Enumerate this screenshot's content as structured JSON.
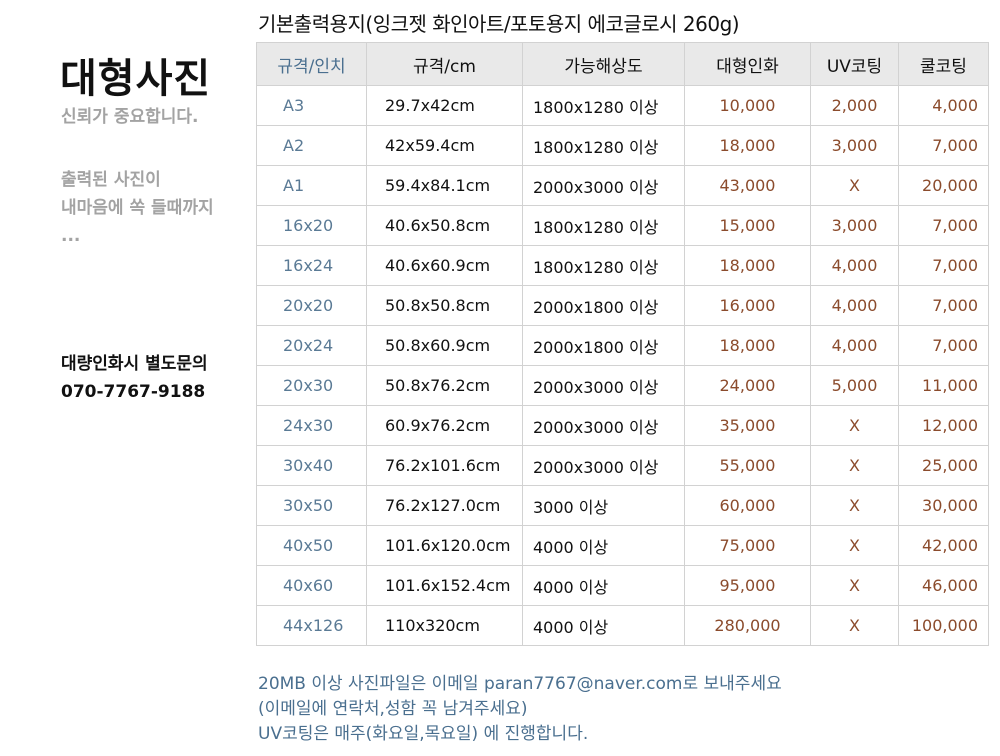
{
  "sidebar": {
    "title": "대형사진",
    "subtitle": "신뢰가 중요합니다.",
    "promo_lines": [
      "출력된 사진이",
      "내마음에 쏙 들때까지",
      "..."
    ],
    "contact_lines": [
      "대량인화시 별도문의",
      "070-7767-9188"
    ]
  },
  "table": {
    "title": "기본출력용지(잉크젯 화인아트/포토용지 에코글로시 260g)",
    "headers": [
      "규격/인치",
      "규격/cm",
      "가능해상도",
      "대형인화",
      "UV코팅",
      "쿨코팅"
    ],
    "rows": [
      [
        "A3",
        "29.7x42cm",
        "1800x1280 이상",
        "10,000",
        "2,000",
        "4,000"
      ],
      [
        "A2",
        "42x59.4cm",
        "1800x1280 이상",
        "18,000",
        "3,000",
        "7,000"
      ],
      [
        "A1",
        "59.4x84.1cm",
        "2000x3000 이상",
        "43,000",
        "X",
        "20,000"
      ],
      [
        "16x20",
        "40.6x50.8cm",
        "1800x1280 이상",
        "15,000",
        "3,000",
        "7,000"
      ],
      [
        "16x24",
        "40.6x60.9cm",
        "1800x1280 이상",
        "18,000",
        "4,000",
        "7,000"
      ],
      [
        "20x20",
        "50.8x50.8cm",
        "2000x1800 이상",
        "16,000",
        "4,000",
        "7,000"
      ],
      [
        "20x24",
        "50.8x60.9cm",
        "2000x1800 이상",
        "18,000",
        "4,000",
        "7,000"
      ],
      [
        "20x30",
        "50.8x76.2cm",
        "2000x3000 이상",
        "24,000",
        "5,000",
        "11,000"
      ],
      [
        "24x30",
        "60.9x76.2cm",
        "2000x3000 이상",
        "35,000",
        "X",
        "12,000"
      ],
      [
        "30x40",
        "76.2x101.6cm",
        "2000x3000 이상",
        "55,000",
        "X",
        "25,000"
      ],
      [
        "30x50",
        "76.2x127.0cm",
        "3000 이상",
        "60,000",
        "X",
        "30,000"
      ],
      [
        "40x50",
        "101.6x120.0cm",
        "4000 이상",
        "75,000",
        "X",
        "42,000"
      ],
      [
        "40x60",
        "101.6x152.4cm",
        "4000 이상",
        "95,000",
        "X",
        "46,000"
      ],
      [
        "44x126",
        "110x320cm",
        "4000 이상",
        "280,000",
        "X",
        "100,000"
      ]
    ]
  },
  "notes": [
    "20MB 이상 사진파일은 이메일 paran7767@naver.com로 보내주세요",
    "(이메일에 연락처,성함 꼭 남겨주세요)",
    "UV코팅은 매주(화요일,목요일) 에 진행합니다."
  ],
  "colors": {
    "header_bg": "#e9e9e9",
    "size_text": "#5a7a95",
    "price_text": "#8b4b2c",
    "note_text": "#4a6f8f",
    "muted_text": "#a3a3a3"
  }
}
